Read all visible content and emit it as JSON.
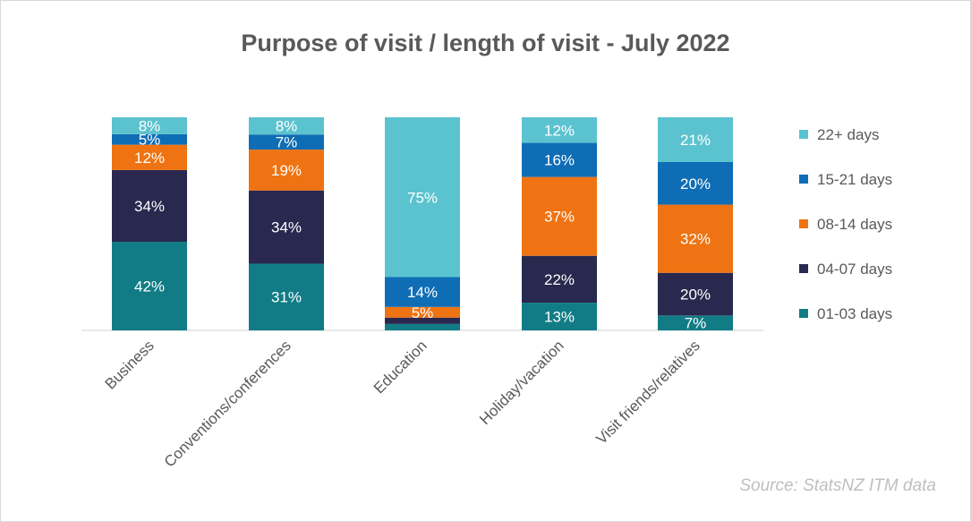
{
  "chart_data": {
    "type": "stacked_bar",
    "title": "Purpose of visit / length of visit - July 2022",
    "categories": [
      "Business",
      "Conventions/conferences",
      "Education",
      "Holiday/vacation",
      "Visit friends/relatives"
    ],
    "series": [
      {
        "name": "01-03 days",
        "color": "#127c86",
        "values": [
          42,
          31,
          3,
          13,
          7
        ],
        "labels": [
          "42%",
          "31%",
          "",
          "13%",
          "7%"
        ]
      },
      {
        "name": "04-07 days",
        "color": "#29284f",
        "values": [
          34,
          34,
          3,
          22,
          20
        ],
        "labels": [
          "34%",
          "34%",
          "",
          "22%",
          "20%"
        ]
      },
      {
        "name": "08-14 days",
        "color": "#ef7312",
        "values": [
          12,
          19,
          5,
          37,
          32
        ],
        "labels": [
          "12%",
          "19%",
          "5%",
          "37%",
          "32%"
        ]
      },
      {
        "name": "15-21 days",
        "color": "#0f6db5",
        "values": [
          5,
          7,
          14,
          16,
          20
        ],
        "labels": [
          "5%",
          "7%",
          "14%",
          "16%",
          "20%"
        ]
      },
      {
        "name": "22+ days",
        "color": "#5bc3cf",
        "values": [
          8,
          8,
          75,
          12,
          21
        ],
        "labels": [
          "8%",
          "8%",
          "75%",
          "12%",
          "21%"
        ]
      }
    ],
    "legend_order": [
      "22+ days",
      "15-21 days",
      "08-14 days",
      "04-07 days",
      "01-03 days"
    ],
    "legend_position": "right",
    "ylim": [
      0,
      100
    ],
    "xlabel": "",
    "ylabel": "",
    "source": "Source: StatsNZ ITM data"
  }
}
